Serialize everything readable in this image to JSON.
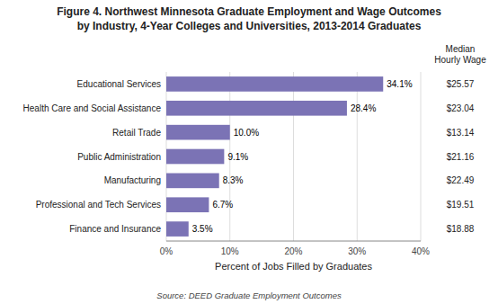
{
  "chart_data": {
    "type": "bar",
    "orientation": "horizontal",
    "title": "Figure 4. Northwest Minnesota Graduate Employment and Wage Outcomes",
    "subtitle": "by Industry, 4-Year Colleges and Universities, 2013-2014 Graduates",
    "categories": [
      "Educational Services",
      "Health Care and Social Assistance",
      "Retail Trade",
      "Public Administration",
      "Manufacturing",
      "Professional and Tech Services",
      "Finance and Insurance"
    ],
    "values": [
      34.1,
      28.4,
      10.0,
      9.1,
      8.3,
      6.7,
      3.5
    ],
    "value_labels": [
      "34.1%",
      "28.4%",
      "10.0%",
      "9.1%",
      "8.3%",
      "6.7%",
      "3.5%"
    ],
    "data_labels": true,
    "color": "#7b73b5",
    "xlabel": "Percent of Jobs Filled by Graduates",
    "xlim": [
      0,
      40
    ],
    "xticks": [
      {
        "value": 0,
        "label": "0%"
      },
      {
        "value": 10,
        "label": "10%"
      },
      {
        "value": 20,
        "label": "20%"
      },
      {
        "value": 30,
        "label": "30%"
      },
      {
        "value": 40,
        "label": "40%"
      }
    ],
    "grid": true,
    "wage_title": "Median\nHourly Wage",
    "wages": [
      "$25.57",
      "$23.04",
      "$13.14",
      "$21.16",
      "$22.49",
      "$19.51",
      "$18.88"
    ],
    "source": "Source: DEED Graduate Employment Outcomes"
  }
}
